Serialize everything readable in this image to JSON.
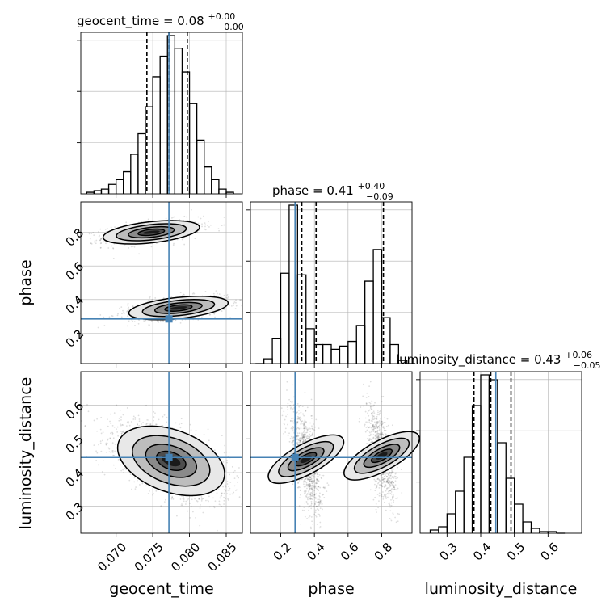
{
  "chart_data": {
    "type": "corner",
    "parameters": [
      "geocent_time",
      "phase",
      "luminosity_distance"
    ],
    "titles": [
      {
        "name": "geocent_time",
        "median": "0.08",
        "plus": "+0.00",
        "minus": "−0.00"
      },
      {
        "name": "phase",
        "median": "0.41",
        "plus": "+0.40",
        "minus": "−0.09"
      },
      {
        "name": "luminosity_distance",
        "median": "0.43",
        "plus": "+0.06",
        "minus": "−0.05"
      }
    ],
    "truths": {
      "geocent_time": 0.0772,
      "phase": 0.285,
      "luminosity_distance": 0.445
    },
    "quantiles": {
      "geocent_time": [
        0.0742,
        0.0772,
        0.0797
      ],
      "phase": [
        0.325,
        0.41,
        0.81
      ],
      "luminosity_distance": [
        0.38,
        0.43,
        0.49
      ]
    },
    "ranges": {
      "geocent_time": [
        0.0652,
        0.0872
      ],
      "phase": [
        0.02,
        0.98
      ],
      "luminosity_distance": [
        0.22,
        0.7
      ]
    },
    "ticks": {
      "geocent_time": [
        0.07,
        0.075,
        0.08,
        0.085
      ],
      "phase": [
        0.2,
        0.4,
        0.6,
        0.8
      ],
      "luminosity_distance": [
        0.3,
        0.4,
        0.5,
        0.6
      ]
    },
    "tick_labels": {
      "geocent_time": [
        "0.070",
        "0.075",
        "0.080",
        "0.085"
      ],
      "phase": [
        "0.2",
        "0.4",
        "0.6",
        "0.8"
      ],
      "luminosity_distance": [
        "0.3",
        "0.4",
        "0.5",
        "0.6"
      ]
    },
    "histograms": {
      "geocent_time": {
        "start": 0.066,
        "width": 0.001,
        "counts": [
          1,
          2,
          3,
          6,
          9,
          14,
          25,
          38,
          55,
          74,
          87,
          100,
          92,
          77,
          57,
          34,
          17,
          9,
          3,
          1
        ]
      },
      "phase": {
        "start": 0.05,
        "width": 0.05,
        "counts": [
          0,
          3,
          16,
          57,
          100,
          56,
          22,
          12,
          12,
          9,
          11,
          14,
          24,
          52,
          72,
          29,
          12,
          2,
          0
        ]
      },
      "luminosity_distance": {
        "start": 0.25,
        "width": 0.025,
        "counts": [
          2,
          4,
          12,
          26,
          47,
          79,
          98,
          95,
          56,
          34,
          18,
          7,
          3,
          1,
          1,
          0
        ]
      }
    },
    "colors": {
      "truth": "#4682b4",
      "line": "#000000",
      "grid": "#b0b0b0"
    },
    "grid": true
  }
}
